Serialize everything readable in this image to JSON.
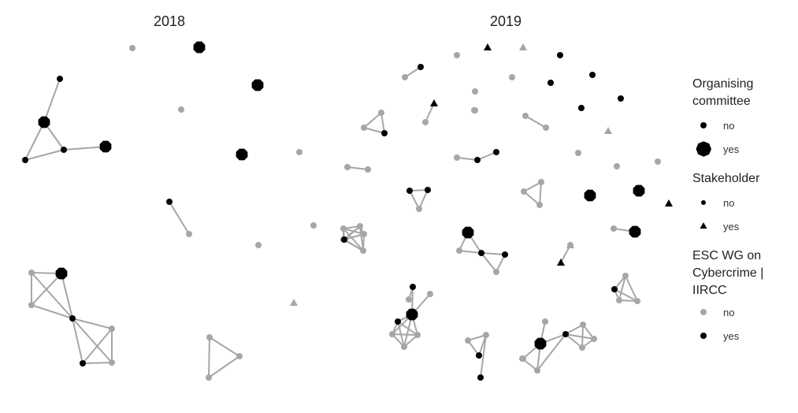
{
  "panels": [
    {
      "id": "p2018",
      "title": "2018"
    },
    {
      "id": "p2019",
      "title": "2019"
    }
  ],
  "legend": {
    "organising_committee": {
      "title_lines": [
        "Organising",
        "committee"
      ],
      "no": "no",
      "yes": "yes"
    },
    "stakeholder": {
      "title_lines": [
        "Stakeholder"
      ],
      "no": "no",
      "yes": "yes"
    },
    "esc_wg": {
      "title_lines": [
        "ESC WG on",
        "Cybercrime |",
        "IIRCC"
      ],
      "no": "no",
      "yes": "yes"
    }
  },
  "colors": {
    "member_yes": "#000000",
    "member_no": "#a6a6a6",
    "edge": "#a6a6a6"
  },
  "nodes_2018": [
    {
      "id": "a1",
      "oc": "no",
      "sh": "no",
      "wg": "no"
    },
    {
      "id": "a2",
      "oc": "yes",
      "sh": "no",
      "wg": "yes"
    },
    {
      "id": "a3",
      "oc": "yes",
      "sh": "no",
      "wg": "yes"
    },
    {
      "id": "a4",
      "oc": "no",
      "sh": "no",
      "wg": "no"
    },
    {
      "id": "a5",
      "oc": "yes",
      "sh": "no",
      "wg": "yes"
    },
    {
      "id": "a6",
      "oc": "no",
      "sh": "no",
      "wg": "yes"
    },
    {
      "id": "a7",
      "oc": "no",
      "sh": "no",
      "wg": "yes"
    },
    {
      "id": "a8",
      "oc": "no",
      "sh": "no",
      "wg": "no"
    },
    {
      "id": "a9",
      "oc": "no",
      "sh": "no",
      "wg": "no"
    },
    {
      "id": "a10",
      "oc": "no",
      "sh": "no",
      "wg": "no"
    },
    {
      "id": "a11",
      "oc": "no",
      "sh": "yes",
      "wg": "no"
    },
    {
      "id": "b1",
      "oc": "no",
      "sh": "no",
      "wg": "yes"
    },
    {
      "id": "b2",
      "oc": "yes",
      "sh": "no",
      "wg": "yes"
    },
    {
      "id": "b3",
      "oc": "no",
      "sh": "no",
      "wg": "yes"
    },
    {
      "id": "b4",
      "oc": "yes",
      "sh": "no",
      "wg": "yes"
    },
    {
      "id": "b5",
      "oc": "no",
      "sh": "no",
      "wg": "no"
    },
    {
      "id": "c1",
      "oc": "no",
      "sh": "no",
      "wg": "no"
    },
    {
      "id": "c2",
      "oc": "yes",
      "sh": "no",
      "wg": "yes"
    },
    {
      "id": "c3",
      "oc": "no",
      "sh": "no",
      "wg": "no"
    },
    {
      "id": "c4",
      "oc": "no",
      "sh": "no",
      "wg": "yes"
    },
    {
      "id": "c5",
      "oc": "no",
      "sh": "no",
      "wg": "yes"
    },
    {
      "id": "c6",
      "oc": "no",
      "sh": "no",
      "wg": "no"
    },
    {
      "id": "c7",
      "oc": "no",
      "sh": "no",
      "wg": "no"
    },
    {
      "id": "d1",
      "oc": "no",
      "sh": "no",
      "wg": "no"
    },
    {
      "id": "d2",
      "oc": "no",
      "sh": "no",
      "wg": "no"
    },
    {
      "id": "d3",
      "oc": "no",
      "sh": "no",
      "wg": "no"
    },
    {
      "id": "e1",
      "oc": "no",
      "sh": "no",
      "wg": "no"
    },
    {
      "id": "e2",
      "oc": "no",
      "sh": "no",
      "wg": "no"
    },
    {
      "id": "f1",
      "oc": "no",
      "sh": "no",
      "wg": "no"
    },
    {
      "id": "f2",
      "oc": "no",
      "sh": "no",
      "wg": "no"
    },
    {
      "id": "f3",
      "oc": "no",
      "sh": "no",
      "wg": "no"
    },
    {
      "id": "f4",
      "oc": "no",
      "sh": "no",
      "wg": "no"
    },
    {
      "id": "f5",
      "oc": "no",
      "sh": "no",
      "wg": "no"
    },
    {
      "id": "f6",
      "oc": "no",
      "sh": "no",
      "wg": "yes"
    }
  ],
  "edges_2018": [
    [
      "a6",
      "b2"
    ],
    [
      "b2",
      "b3"
    ],
    [
      "b2",
      "b1"
    ],
    [
      "b3",
      "b1"
    ],
    [
      "b3",
      "b4"
    ],
    [
      "a7",
      "a8"
    ],
    [
      "c1",
      "c2"
    ],
    [
      "c1",
      "c3"
    ],
    [
      "c1",
      "c4"
    ],
    [
      "c2",
      "c3"
    ],
    [
      "c2",
      "c4"
    ],
    [
      "c3",
      "c4"
    ],
    [
      "c4",
      "c5"
    ],
    [
      "c4",
      "c6"
    ],
    [
      "c4",
      "c7"
    ],
    [
      "c5",
      "c6"
    ],
    [
      "c5",
      "c7"
    ],
    [
      "c6",
      "c7"
    ],
    [
      "d1",
      "d2"
    ],
    [
      "d1",
      "d3"
    ],
    [
      "d2",
      "d3"
    ],
    [
      "e1",
      "e2"
    ],
    [
      "f1",
      "f2"
    ],
    [
      "f1",
      "f3"
    ],
    [
      "f1",
      "f4"
    ],
    [
      "f1",
      "f5"
    ],
    [
      "f1",
      "f6"
    ],
    [
      "f2",
      "f3"
    ],
    [
      "f2",
      "f4"
    ],
    [
      "f2",
      "f5"
    ],
    [
      "f2",
      "f6"
    ],
    [
      "f3",
      "f4"
    ],
    [
      "f3",
      "f5"
    ],
    [
      "f3",
      "f6"
    ],
    [
      "f4",
      "f5"
    ],
    [
      "f4",
      "f6"
    ],
    [
      "f5",
      "f6"
    ]
  ],
  "nodes_2019": [
    {
      "id": "s1",
      "oc": "no",
      "sh": "yes",
      "wg": "yes"
    },
    {
      "id": "s2",
      "oc": "no",
      "sh": "yes",
      "wg": "no"
    },
    {
      "id": "s3",
      "oc": "no",
      "sh": "no",
      "wg": "no"
    },
    {
      "id": "s4",
      "oc": "no",
      "sh": "no",
      "wg": "yes"
    },
    {
      "id": "s5",
      "oc": "no",
      "sh": "no",
      "wg": "yes"
    },
    {
      "id": "s6",
      "oc": "no",
      "sh": "no",
      "wg": "yes"
    },
    {
      "id": "s7",
      "oc": "no",
      "sh": "no",
      "wg": "yes"
    },
    {
      "id": "s8",
      "oc": "no",
      "sh": "no",
      "wg": "yes"
    },
    {
      "id": "s9",
      "oc": "no",
      "sh": "no",
      "wg": "no"
    },
    {
      "id": "s10",
      "oc": "no",
      "sh": "yes",
      "wg": "no"
    },
    {
      "id": "s11",
      "oc": "no",
      "sh": "no",
      "wg": "no"
    },
    {
      "id": "s12",
      "oc": "no",
      "sh": "no",
      "wg": "no"
    },
    {
      "id": "s13",
      "oc": "no",
      "sh": "no",
      "wg": "no"
    },
    {
      "id": "s14",
      "oc": "yes",
      "sh": "no",
      "wg": "yes"
    },
    {
      "id": "s15",
      "oc": "no",
      "sh": "yes",
      "wg": "yes"
    },
    {
      "id": "g1",
      "oc": "no",
      "sh": "no",
      "wg": "no"
    },
    {
      "id": "g2",
      "oc": "no",
      "sh": "no",
      "wg": "yes"
    },
    {
      "id": "g3",
      "oc": "no",
      "sh": "no",
      "wg": "no"
    },
    {
      "id": "g4",
      "oc": "no",
      "sh": "no",
      "wg": "no"
    },
    {
      "id": "g5",
      "oc": "no",
      "sh": "no",
      "wg": "no"
    },
    {
      "id": "g6",
      "oc": "no",
      "sh": "yes",
      "wg": "yes"
    },
    {
      "id": "g7",
      "oc": "no",
      "sh": "no",
      "wg": "no"
    },
    {
      "id": "g8",
      "oc": "no",
      "sh": "no",
      "wg": "no"
    },
    {
      "id": "g9",
      "oc": "no",
      "sh": "no",
      "wg": "no"
    },
    {
      "id": "g10",
      "oc": "no",
      "sh": "no",
      "wg": "no"
    },
    {
      "id": "g11",
      "oc": "no",
      "sh": "yes",
      "wg": "no"
    },
    {
      "id": "g12",
      "oc": "no",
      "sh": "no",
      "wg": "no"
    },
    {
      "id": "g13",
      "oc": "no",
      "sh": "no",
      "wg": "no"
    },
    {
      "id": "g14",
      "oc": "no",
      "sh": "no",
      "wg": "yes"
    },
    {
      "id": "g15",
      "oc": "no",
      "sh": "no",
      "wg": "no"
    },
    {
      "id": "g16",
      "oc": "no",
      "sh": "no",
      "wg": "no"
    },
    {
      "id": "g17",
      "oc": "no",
      "sh": "no",
      "wg": "yes"
    },
    {
      "id": "g18",
      "oc": "no",
      "sh": "no",
      "wg": "no"
    },
    {
      "id": "g19",
      "oc": "no",
      "sh": "no",
      "wg": "yes"
    },
    {
      "id": "g20",
      "oc": "no",
      "sh": "no",
      "wg": "no"
    },
    {
      "id": "g21",
      "oc": "no",
      "sh": "no",
      "wg": "no"
    },
    {
      "id": "g22",
      "oc": "no",
      "sh": "no",
      "wg": "no"
    },
    {
      "id": "g23",
      "oc": "no",
      "sh": "no",
      "wg": "yes"
    },
    {
      "id": "g24",
      "oc": "no",
      "sh": "no",
      "wg": "yes"
    },
    {
      "id": "g25",
      "oc": "no",
      "sh": "no",
      "wg": "no"
    },
    {
      "id": "g26",
      "oc": "no",
      "sh": "no",
      "wg": "no"
    },
    {
      "id": "g27",
      "oc": "no",
      "sh": "no",
      "wg": "no"
    },
    {
      "id": "g28",
      "oc": "yes",
      "sh": "no",
      "wg": "yes"
    },
    {
      "id": "g29",
      "oc": "no",
      "sh": "no",
      "wg": "no"
    },
    {
      "id": "g30",
      "oc": "no",
      "sh": "no",
      "wg": "no"
    },
    {
      "id": "g31",
      "oc": "yes",
      "sh": "no",
      "wg": "yes"
    },
    {
      "id": "g32",
      "oc": "no",
      "sh": "no",
      "wg": "yes"
    },
    {
      "id": "g33",
      "oc": "no",
      "sh": "no",
      "wg": "yes"
    },
    {
      "id": "g34",
      "oc": "no",
      "sh": "no",
      "wg": "no"
    },
    {
      "id": "g35",
      "oc": "no",
      "sh": "no",
      "wg": "no"
    },
    {
      "id": "g36",
      "oc": "no",
      "sh": "yes",
      "wg": "no"
    },
    {
      "id": "g37",
      "oc": "no",
      "sh": "yes",
      "wg": "yes"
    },
    {
      "id": "g38",
      "oc": "no",
      "sh": "no",
      "wg": "no"
    },
    {
      "id": "g39",
      "oc": "yes",
      "sh": "no",
      "wg": "yes"
    },
    {
      "id": "g40",
      "oc": "no",
      "sh": "no",
      "wg": "no"
    },
    {
      "id": "g41",
      "oc": "no",
      "sh": "no",
      "wg": "no"
    },
    {
      "id": "g42",
      "oc": "no",
      "sh": "no",
      "wg": "yes"
    },
    {
      "id": "g43",
      "oc": "no",
      "sh": "no",
      "wg": "no"
    },
    {
      "id": "g44",
      "oc": "no",
      "sh": "no",
      "wg": "no"
    },
    {
      "id": "g45",
      "oc": "no",
      "sh": "no",
      "wg": "no"
    },
    {
      "id": "g46",
      "oc": "no",
      "sh": "no",
      "wg": "yes"
    },
    {
      "id": "g47",
      "oc": "yes",
      "sh": "no",
      "wg": "yes"
    },
    {
      "id": "g48",
      "oc": "no",
      "sh": "no",
      "wg": "no"
    },
    {
      "id": "g49",
      "oc": "no",
      "sh": "no",
      "wg": "no"
    },
    {
      "id": "g50",
      "oc": "no",
      "sh": "no",
      "wg": "no"
    },
    {
      "id": "g51",
      "oc": "no",
      "sh": "no",
      "wg": "yes"
    },
    {
      "id": "g52",
      "oc": "no",
      "sh": "no",
      "wg": "no"
    },
    {
      "id": "g53",
      "oc": "no",
      "sh": "no",
      "wg": "no"
    },
    {
      "id": "g54",
      "oc": "no",
      "sh": "no",
      "wg": "no"
    },
    {
      "id": "g55",
      "oc": "no",
      "sh": "no",
      "wg": "no"
    },
    {
      "id": "g56",
      "oc": "no",
      "sh": "no",
      "wg": "no"
    },
    {
      "id": "g57",
      "oc": "no",
      "sh": "no",
      "wg": "yes"
    },
    {
      "id": "g58",
      "oc": "no",
      "sh": "no",
      "wg": "yes"
    },
    {
      "id": "g59",
      "oc": "no",
      "sh": "no",
      "wg": "no"
    },
    {
      "id": "g60",
      "oc": "no",
      "sh": "no",
      "wg": "no"
    },
    {
      "id": "g61",
      "oc": "yes",
      "sh": "no",
      "wg": "yes"
    },
    {
      "id": "g62",
      "oc": "no",
      "sh": "no",
      "wg": "yes"
    },
    {
      "id": "g63",
      "oc": "no",
      "sh": "no",
      "wg": "no"
    },
    {
      "id": "g64",
      "oc": "no",
      "sh": "no",
      "wg": "no"
    },
    {
      "id": "g65",
      "oc": "no",
      "sh": "no",
      "wg": "no"
    },
    {
      "id": "g66",
      "oc": "no",
      "sh": "no",
      "wg": "no"
    },
    {
      "id": "g67",
      "oc": "no",
      "sh": "no",
      "wg": "no"
    },
    {
      "id": "g68",
      "oc": "no",
      "sh": "no",
      "wg": "yes"
    },
    {
      "id": "g69",
      "oc": "no",
      "sh": "no",
      "wg": "no"
    },
    {
      "id": "g70",
      "oc": "no",
      "sh": "no",
      "wg": "no"
    },
    {
      "id": "g71",
      "oc": "no",
      "sh": "no",
      "wg": "no"
    },
    {
      "id": "g72",
      "oc": "no",
      "sh": "no",
      "wg": "no"
    },
    {
      "id": "g73",
      "oc": "no",
      "sh": "no",
      "wg": "yes"
    },
    {
      "id": "g74",
      "oc": "no",
      "sh": "no",
      "wg": "no"
    },
    {
      "id": "g75",
      "oc": "no",
      "sh": "no",
      "wg": "yes"
    },
    {
      "id": "g76",
      "oc": "no",
      "sh": "no",
      "wg": "yes"
    },
    {
      "id": "g77",
      "oc": "no",
      "sh": "no",
      "wg": "no"
    },
    {
      "id": "g78",
      "oc": "no",
      "sh": "no",
      "wg": "no"
    }
  ],
  "edges_2019": [
    [
      "g1",
      "g2"
    ],
    [
      "g4",
      "g5"
    ],
    [
      "g6",
      "g7"
    ],
    [
      "g8",
      "g9"
    ],
    [
      "g8",
      "g10"
    ],
    [
      "g9",
      "g10"
    ],
    [
      "g10",
      "g14"
    ],
    [
      "g11",
      "g12"
    ],
    [
      "g11",
      "g13"
    ],
    [
      "g11",
      "g14"
    ],
    [
      "g15",
      "g16"
    ],
    [
      "g17",
      "g18"
    ],
    [
      "g17",
      "g19"
    ],
    [
      "g20",
      "g21"
    ],
    [
      "g23",
      "g24"
    ],
    [
      "g23",
      "g25"
    ],
    [
      "g24",
      "g25"
    ],
    [
      "g26",
      "g27"
    ],
    [
      "g26",
      "g29"
    ],
    [
      "g27",
      "g29"
    ],
    [
      "g28",
      "g30"
    ],
    [
      "g31",
      "g32"
    ],
    [
      "g31",
      "g34"
    ],
    [
      "g32",
      "g33"
    ],
    [
      "g32",
      "g34"
    ],
    [
      "g33",
      "g35"
    ],
    [
      "g32",
      "g35"
    ],
    [
      "g37",
      "g38"
    ],
    [
      "g39",
      "g40"
    ],
    [
      "g41",
      "g42"
    ],
    [
      "g42",
      "g43"
    ],
    [
      "g41",
      "g43"
    ],
    [
      "g42",
      "g44"
    ],
    [
      "g43",
      "g44"
    ],
    [
      "g41",
      "g44"
    ],
    [
      "g46",
      "g49"
    ],
    [
      "g46",
      "g47"
    ],
    [
      "g47",
      "g48"
    ],
    [
      "g47",
      "g50"
    ],
    [
      "g47",
      "g51"
    ],
    [
      "g47",
      "g52"
    ],
    [
      "g47",
      "g53"
    ],
    [
      "g50",
      "g51"
    ],
    [
      "g50",
      "g52"
    ],
    [
      "g51",
      "g52"
    ],
    [
      "g52",
      "g53"
    ],
    [
      "g50",
      "g53"
    ],
    [
      "g51",
      "g53"
    ],
    [
      "g54",
      "g55"
    ],
    [
      "g55",
      "g56"
    ],
    [
      "g54",
      "g56"
    ],
    [
      "g55",
      "g57"
    ],
    [
      "g56",
      "g58"
    ],
    [
      "g59",
      "g60"
    ],
    [
      "g60",
      "g61"
    ],
    [
      "g61",
      "g62"
    ],
    [
      "g61",
      "g63"
    ],
    [
      "g61",
      "g64"
    ],
    [
      "g62",
      "g65"
    ],
    [
      "g62",
      "g66"
    ],
    [
      "g62",
      "g67"
    ],
    [
      "g65",
      "g66"
    ],
    [
      "g66",
      "g67"
    ],
    [
      "g65",
      "g67"
    ],
    [
      "g60",
      "g62"
    ],
    [
      "g68",
      "g69"
    ],
    [
      "g68",
      "g70"
    ],
    [
      "g68",
      "g71"
    ],
    [
      "g69",
      "g70"
    ],
    [
      "g69",
      "g71"
    ],
    [
      "g70",
      "g71"
    ]
  ]
}
